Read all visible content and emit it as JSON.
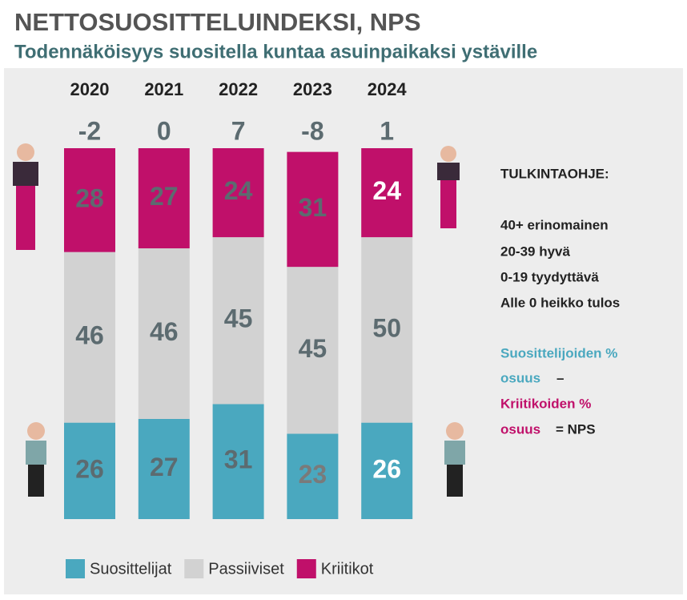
{
  "chart_data": {
    "type": "stacked_bar",
    "title": "NETTOSUOSITTELUINDEKSI, NPS",
    "subtitle": "Todennäköisyys suositella kuntaa asuinpaikaksi ystäville",
    "categories": [
      "2020",
      "2021",
      "2022",
      "2023",
      "2024"
    ],
    "nps": [
      -2,
      0,
      7,
      -8,
      1
    ],
    "series": [
      {
        "name": "Suosittelijat",
        "color": "#4aa8bf",
        "values": [
          26,
          27,
          31,
          23,
          26
        ],
        "label_colors": [
          "#5c6b70",
          "#5c6b70",
          "#5c6b70",
          "#7a7a7a",
          "#ffffff"
        ]
      },
      {
        "name": "Passiiviset",
        "color": "#d2d2d2",
        "values": [
          46,
          46,
          45,
          45,
          50
        ],
        "label_colors": [
          "#5c6b70",
          "#5c6b70",
          "#5c6b70",
          "#5c6b70",
          "#5c6b70"
        ]
      },
      {
        "name": "Kriitikot",
        "color": "#c0106a",
        "values": [
          28,
          27,
          24,
          31,
          24
        ],
        "label_colors": [
          "#5c6b70",
          "#5c6b70",
          "#5c6b70",
          "#5c6b70",
          "#ffffff"
        ]
      }
    ],
    "legend": "bottom",
    "interpretation": {
      "title": "TULKINTAOHJE:",
      "lines": [
        "40+ erinomainen",
        "20-39 hyvä",
        "0-19 tyydyttävä",
        "Alle 0 heikko tulos"
      ],
      "formula": [
        "Suosittelijoiden %",
        "osuus",
        "–",
        "Kriitikoiden %",
        "osuus",
        "= NPS"
      ]
    }
  }
}
